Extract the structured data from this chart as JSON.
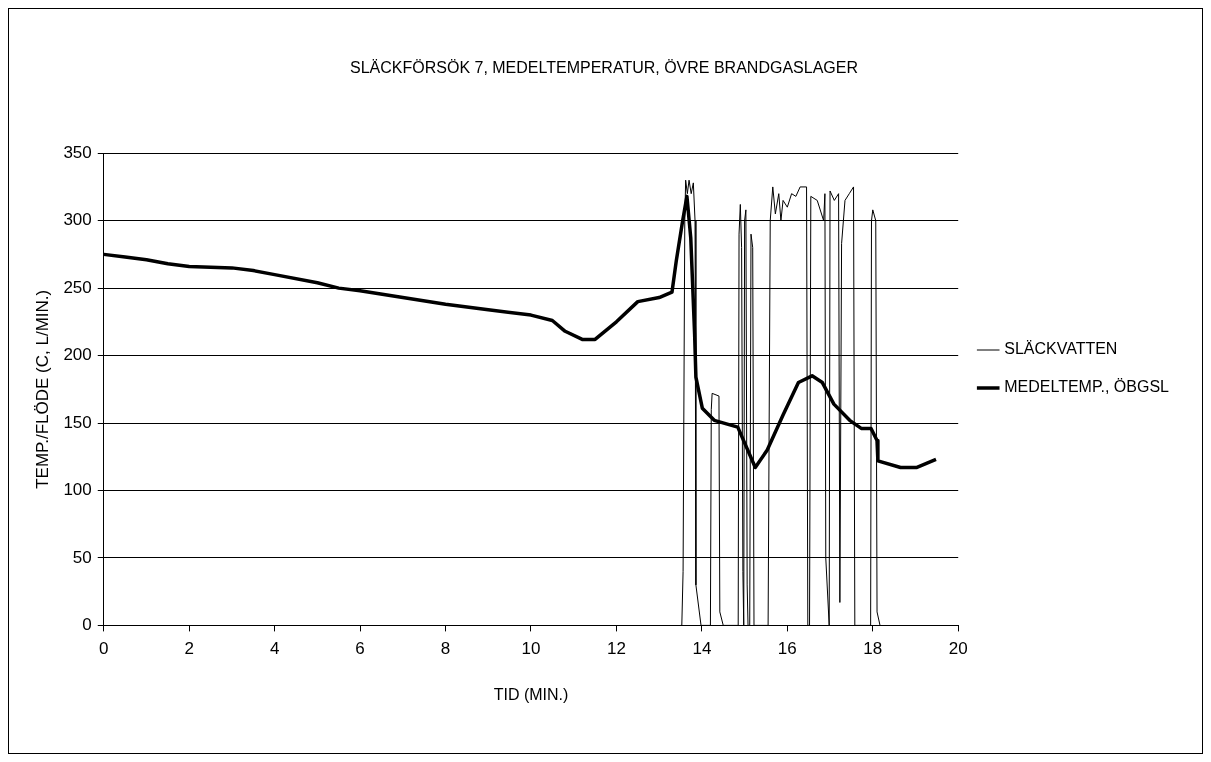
{
  "chart_data": {
    "type": "line",
    "title": "SLÄCKFÖRSÖK 7, MEDELTEMPERATUR, ÖVRE BRANDGASLAGER",
    "xlabel": "TID (MIN.)",
    "ylabel": "TEMP./FLÖDE (C, L/MIN.)",
    "xlim": [
      0,
      20
    ],
    "xticks": [
      0,
      2,
      4,
      6,
      8,
      10,
      12,
      14,
      16,
      18,
      20
    ],
    "ylim": [
      0,
      350
    ],
    "yticks": [
      0,
      50,
      100,
      150,
      200,
      250,
      300,
      350
    ],
    "grid": "y",
    "legend": "right",
    "marker": "none",
    "series": [
      {
        "name": "SLÄCKVATTEN",
        "color": "#000000",
        "x": [
          13.5,
          13.53,
          13.56,
          13.6,
          13.62,
          13.66,
          13.7,
          13.75,
          13.8,
          13.84,
          13.86,
          13.98,
          14.2,
          14.22,
          14.24,
          14.4,
          14.42,
          14.5,
          14.85,
          14.87,
          14.9,
          14.93,
          14.96,
          14.98,
          15.0,
          15.03,
          15.06,
          15.08,
          15.12,
          15.15,
          15.19,
          15.22,
          15.55,
          15.6,
          15.66,
          15.72,
          15.8,
          15.85,
          15.9,
          16.0,
          16.1,
          16.2,
          16.3,
          16.45,
          16.48,
          16.52,
          16.55,
          16.7,
          16.85,
          16.88,
          16.9,
          16.98,
          17.0,
          17.1,
          17.2,
          17.23,
          17.27,
          17.35,
          17.45,
          17.55,
          17.58,
          17.95,
          17.97,
          18.0,
          18.07,
          18.1,
          18.17
        ],
        "values": [
          0,
          0,
          40,
          300,
          330,
          320,
          330,
          320,
          328,
          300,
          30,
          0,
          0,
          160,
          172,
          170,
          10,
          0,
          0,
          290,
          312,
          280,
          40,
          0,
          300,
          308,
          30,
          0,
          0,
          290,
          280,
          0,
          0,
          300,
          325,
          305,
          320,
          300,
          315,
          310,
          320,
          318,
          325,
          325,
          0,
          0,
          318,
          315,
          300,
          320,
          50,
          0,
          322,
          315,
          320,
          17,
          283,
          315,
          320,
          325,
          0,
          0,
          300,
          308,
          300,
          10,
          0
        ]
      },
      {
        "name": "MEDELTEMP., ÖBGSL",
        "color": "#000000",
        "x": [
          0,
          0.5,
          1,
          1.5,
          2,
          3,
          3.5,
          4,
          5,
          5.5,
          6,
          7,
          8,
          9,
          10,
          10.5,
          10.8,
          11.2,
          11.5,
          12,
          12.5,
          13,
          13.3,
          13.4,
          13.55,
          13.65,
          13.74,
          13.83,
          13.86,
          14.01,
          14.29,
          14.84,
          15.25,
          15.53,
          15.9,
          16.26,
          16.58,
          16.82,
          17.09,
          17.46,
          17.73,
          17.96,
          18.1,
          18.12,
          18.65,
          19.02,
          19.48
        ],
        "values": [
          275,
          273,
          271,
          268,
          266,
          265,
          263,
          260,
          254,
          250,
          248,
          243,
          238,
          234,
          230,
          226,
          218,
          212,
          212,
          225,
          240,
          243,
          247,
          270,
          300,
          318,
          287,
          216,
          184,
          161,
          152,
          147,
          117,
          130,
          156,
          180,
          185,
          180,
          164,
          152,
          146,
          146,
          137,
          122,
          117,
          117,
          123
        ]
      }
    ]
  }
}
